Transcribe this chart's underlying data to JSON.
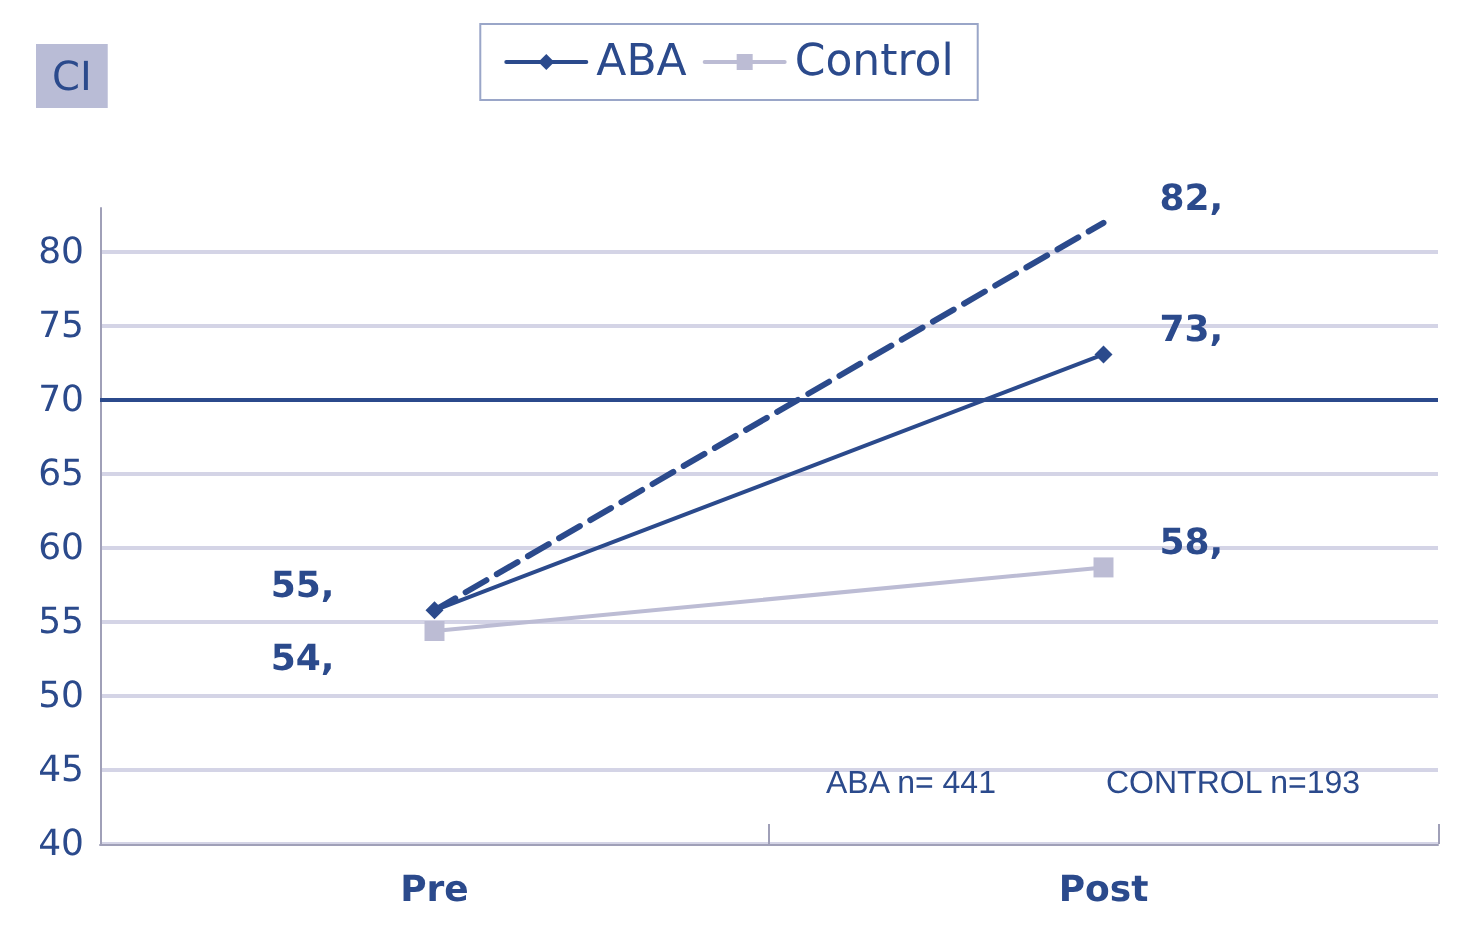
{
  "chart_data": {
    "type": "line",
    "title": "CI",
    "categories": [
      "Pre",
      "Post"
    ],
    "series": [
      {
        "name": "ABA",
        "color": "#2b4a8c",
        "values": [
          55.8,
          73.1
        ],
        "marker": "diamond"
      },
      {
        "name": "Control",
        "color": "#bcbcd4",
        "values": [
          54.4,
          58.7
        ],
        "marker": "square"
      },
      {
        "color": "#2b4a8c",
        "values": [
          55.8,
          82
        ],
        "marker": "none",
        "line_style": "dashed"
      }
    ],
    "ylim": [
      40,
      83
    ],
    "yticks": [
      40,
      45,
      50,
      55,
      60,
      65,
      70,
      75,
      80
    ],
    "grid": "y",
    "legend": "top",
    "ref_lines": [
      {
        "axis": "y",
        "value": 70,
        "color": "#2b4a8c"
      }
    ],
    "annotations": [
      {
        "text": "55,",
        "x": "Pre",
        "y": 55.8
      },
      {
        "text": "54,",
        "x": "Pre",
        "y": 54.4
      },
      {
        "text": "73,",
        "x": "Post",
        "y": 73.1
      },
      {
        "text": "58,",
        "x": "Post",
        "y": 58.7
      },
      {
        "text": "82,",
        "x": "Post",
        "y": 82
      },
      "ABA n= 441",
      "CONTROL n=193"
    ]
  }
}
